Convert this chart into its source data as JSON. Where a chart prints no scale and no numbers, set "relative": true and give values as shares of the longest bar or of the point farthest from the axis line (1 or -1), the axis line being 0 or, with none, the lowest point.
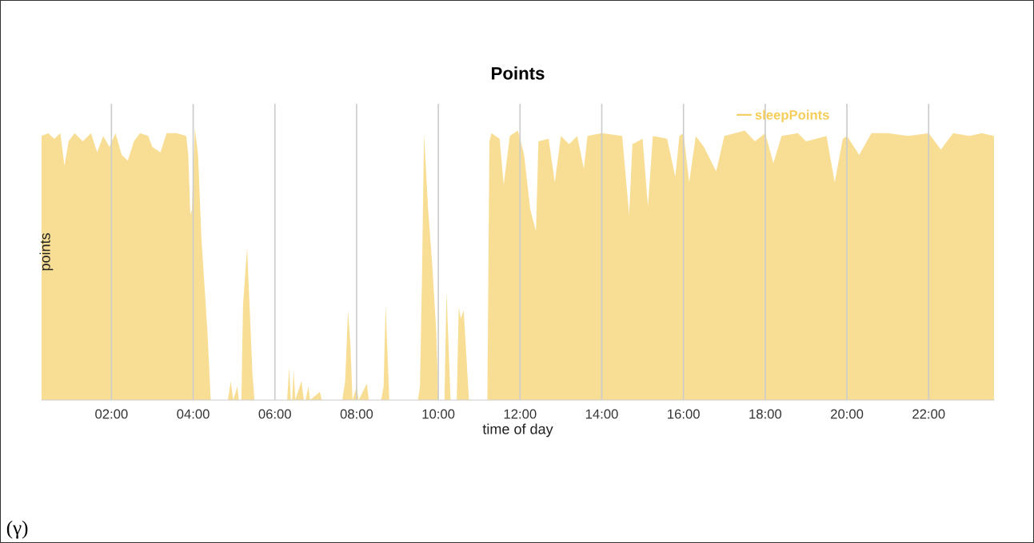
{
  "chart_data": {
    "type": "area",
    "title": "Points",
    "xlabel": "time of day",
    "ylabel": "points",
    "relative": true,
    "annotations": [
      "(γ)"
    ],
    "xlim": [
      0.29,
      23.6
    ],
    "xticks": [
      {
        "value": 2,
        "label": "02:00"
      },
      {
        "value": 4,
        "label": "04:00"
      },
      {
        "value": 6,
        "label": "06:00"
      },
      {
        "value": 8,
        "label": "08:00"
      },
      {
        "value": 10,
        "label": "10:00"
      },
      {
        "value": 12,
        "label": "12:00"
      },
      {
        "value": 14,
        "label": "14:00"
      },
      {
        "value": 16,
        "label": "16:00"
      },
      {
        "value": 18,
        "label": "18:00"
      },
      {
        "value": 20,
        "label": "20:00"
      },
      {
        "value": 22,
        "label": "22:00"
      }
    ],
    "grid": "x",
    "legend": "top right",
    "series": [
      {
        "name": "sleepPoints",
        "color": "#f5cd5a",
        "x": [
          0.29,
          0.45,
          0.6,
          0.75,
          0.85,
          0.95,
          1.1,
          1.3,
          1.5,
          1.65,
          1.8,
          1.95,
          2.1,
          2.25,
          2.4,
          2.55,
          2.7,
          2.9,
          3.0,
          3.2,
          3.35,
          3.6,
          3.83,
          3.88,
          3.93,
          3.97,
          4.04,
          4.12,
          4.2,
          4.35,
          4.43,
          4.85,
          4.92,
          4.98,
          5.08,
          5.12,
          5.18,
          5.22,
          5.32,
          5.45,
          5.5,
          6.3,
          6.35,
          6.39,
          6.42,
          6.46,
          6.5,
          6.65,
          6.71,
          6.75,
          6.82,
          6.86,
          7.1,
          7.15,
          7.65,
          7.72,
          7.79,
          7.85,
          7.9,
          8.0,
          8.05,
          8.25,
          8.3,
          8.6,
          8.66,
          8.71,
          8.8,
          9.5,
          9.55,
          9.6,
          9.65,
          9.75,
          9.85,
          9.95,
          10.0,
          10.15,
          10.2,
          10.3,
          10.45,
          10.5,
          10.55,
          10.62,
          10.75,
          11.2,
          11.25,
          11.3,
          11.5,
          11.6,
          11.75,
          11.95,
          12.1,
          12.25,
          12.39,
          12.45,
          12.7,
          12.85,
          13.0,
          13.2,
          13.4,
          13.56,
          13.65,
          14.0,
          14.5,
          14.67,
          14.75,
          15.0,
          15.13,
          15.25,
          15.6,
          15.8,
          15.9,
          16.0,
          16.14,
          16.3,
          16.5,
          16.8,
          17.0,
          17.5,
          17.75,
          18.0,
          18.2,
          18.4,
          18.8,
          19.0,
          19.5,
          19.7,
          19.9,
          20.0,
          20.3,
          20.6,
          21.0,
          21.5,
          22.0,
          22.3,
          22.6,
          23.0,
          23.3,
          23.6
        ],
        "values": [
          0.97,
          0.98,
          0.96,
          0.98,
          0.86,
          0.95,
          0.98,
          0.95,
          0.98,
          0.91,
          0.97,
          0.93,
          0.98,
          0.9,
          0.88,
          0.95,
          0.98,
          0.97,
          0.93,
          0.91,
          0.98,
          0.98,
          0.97,
          0.9,
          0.68,
          0.7,
          1.0,
          0.9,
          0.6,
          0.25,
          0,
          0,
          0.07,
          0,
          0.05,
          0,
          0,
          0.35,
          0.56,
          0.1,
          0,
          0,
          0.12,
          0,
          0,
          0.11,
          0,
          0.07,
          0,
          0,
          0.05,
          0,
          0.03,
          0,
          0,
          0.07,
          0.33,
          0.2,
          0,
          0.05,
          0,
          0.06,
          0,
          0,
          0.05,
          0.35,
          0,
          0,
          0.05,
          0.45,
          0.98,
          0.7,
          0.5,
          0.25,
          0,
          0,
          0.4,
          0,
          0,
          0.34,
          0.3,
          0.33,
          0,
          0,
          0.95,
          0.98,
          0.96,
          0.79,
          0.97,
          0.99,
          0.9,
          0.7,
          0.62,
          0.95,
          0.96,
          0.8,
          0.97,
          0.94,
          0.97,
          0.85,
          0.97,
          0.98,
          0.97,
          0.68,
          0.94,
          0.96,
          0.71,
          0.97,
          0.96,
          0.82,
          0.97,
          0.98,
          0.8,
          0.97,
          0.93,
          0.84,
          0.97,
          0.99,
          0.95,
          0.98,
          0.87,
          0.97,
          0.98,
          0.95,
          0.97,
          0.8,
          0.96,
          0.97,
          0.9,
          0.98,
          0.98,
          0.97,
          0.98,
          0.92,
          0.98,
          0.97,
          0.98,
          0.97
        ]
      }
    ]
  }
}
